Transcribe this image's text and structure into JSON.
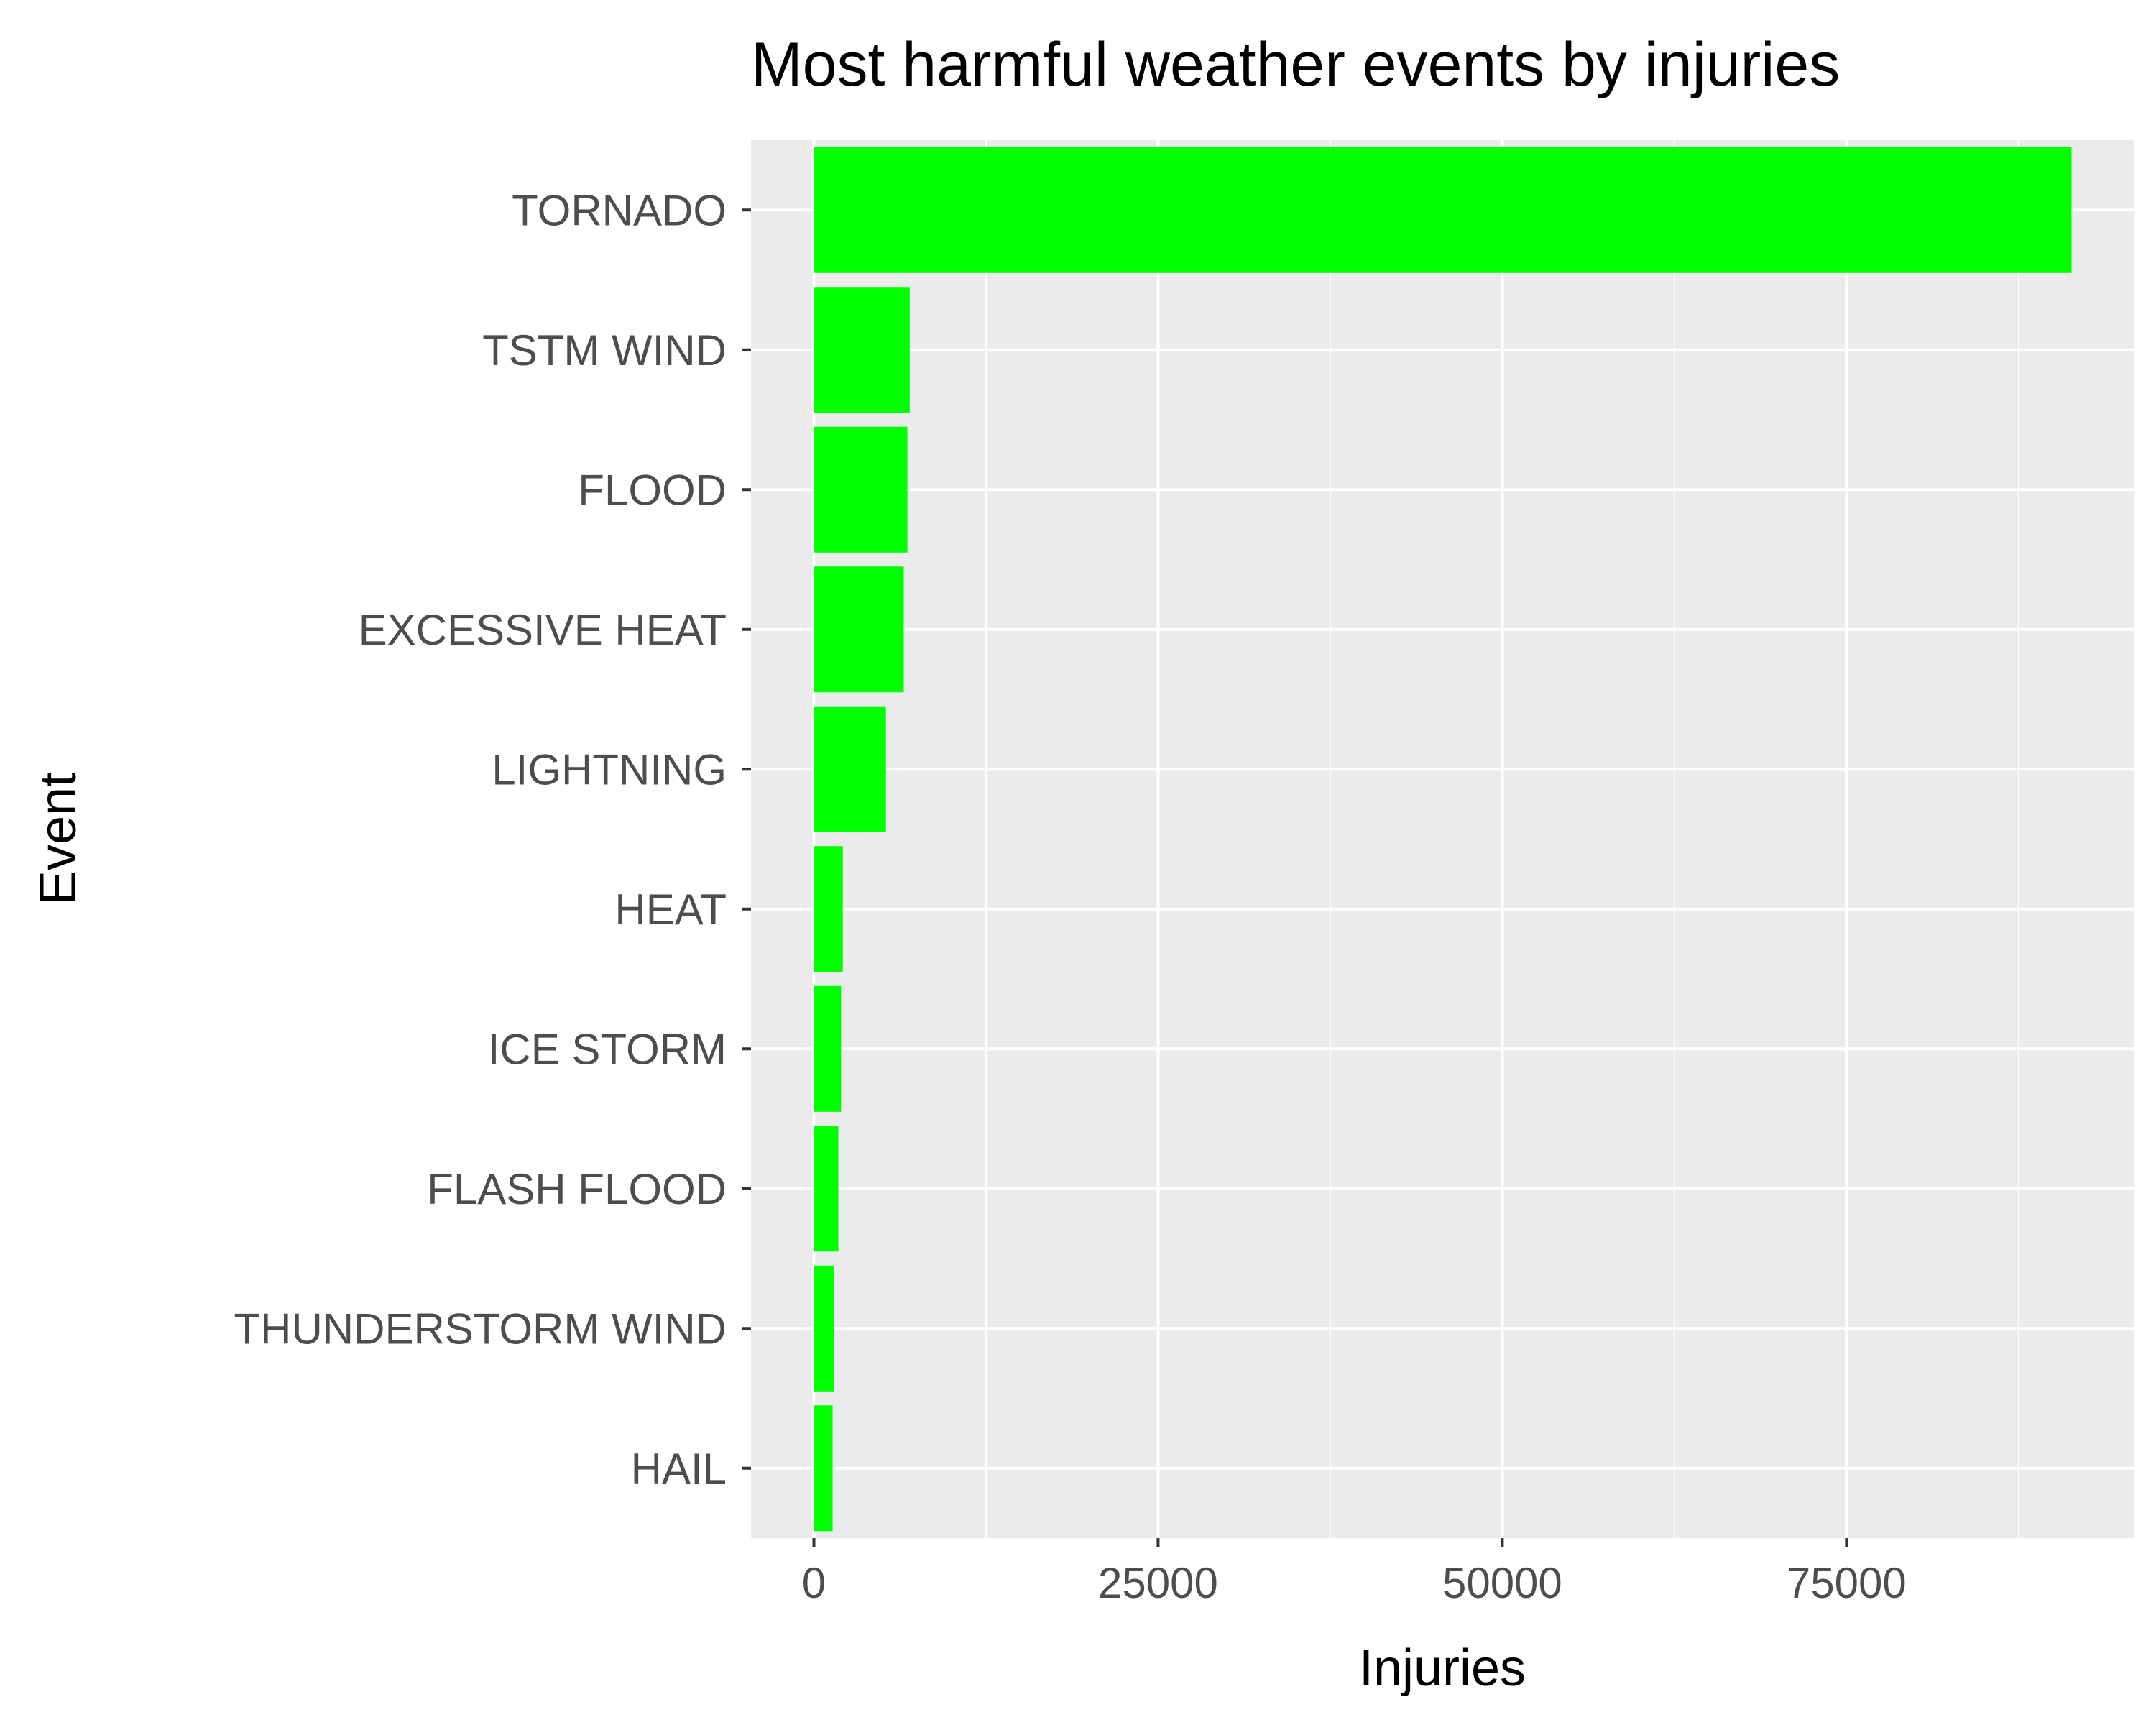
{
  "chart_data": {
    "type": "bar",
    "orientation": "horizontal",
    "title": "Most harmful weather events by injuries",
    "xlabel": "Injuries",
    "ylabel": "Event",
    "categories": [
      "TORNADO",
      "TSTM WIND",
      "FLOOD",
      "EXCESSIVE HEAT",
      "LIGHTNING",
      "HEAT",
      "ICE STORM",
      "FLASH FLOOD",
      "THUNDERSTORM WIND",
      "HAIL"
    ],
    "values": [
      91346,
      6957,
      6789,
      6525,
      5230,
      2100,
      1975,
      1777,
      1488,
      1361
    ],
    "xlim": [
      -4567,
      95913
    ],
    "x_ticks": [
      "0",
      "25000",
      "50000",
      "75000"
    ],
    "x_tick_values": [
      0,
      25000,
      50000,
      75000
    ],
    "x_minor_gridlines": [
      12500,
      37500,
      62500,
      87500
    ],
    "grid": true,
    "legend": "none",
    "colors": {
      "bar": "#00ff00",
      "panel_background": "#ebebeb",
      "gridline": "#ffffff",
      "tick_mark": "#333333",
      "tick_label": "#4d4d4d"
    }
  }
}
